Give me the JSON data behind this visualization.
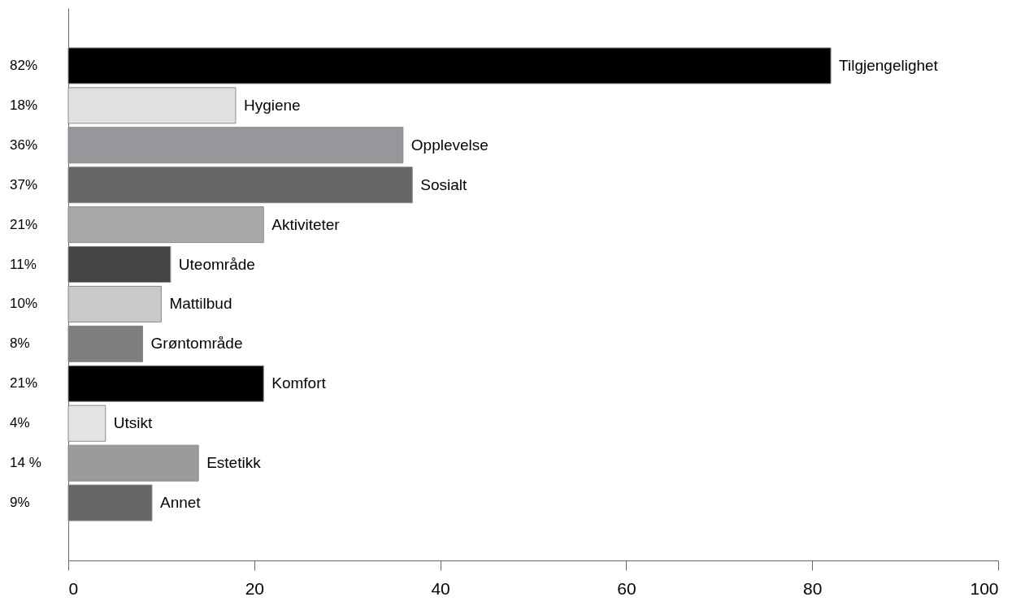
{
  "chart_data": {
    "type": "bar",
    "orientation": "horizontal",
    "categories": [
      "Tilgjengelighet",
      "Hygiene",
      "Opplevelse",
      "Sosialt",
      "Aktiviteter",
      "Uteområde",
      "Mattilbud",
      "Grøntområde",
      "Komfort",
      "Utsikt",
      "Estetikk",
      "Annet"
    ],
    "values": [
      82,
      18,
      36,
      37,
      21,
      11,
      10,
      8,
      21,
      4,
      14,
      9
    ],
    "value_labels": [
      "82%",
      "18%",
      "36%",
      "37%",
      "21%",
      "11%",
      "10%",
      "8%",
      "21%",
      "4%",
      "14 %",
      "9%"
    ],
    "colors": [
      "#000000",
      "#e0e1e3",
      "#96979a",
      "#666769",
      "#a8a9ab",
      "#444446",
      "#c8c9cb",
      "#7d7e80",
      "#000000",
      "#e3e4e6",
      "#9a9b9d",
      "#666768"
    ],
    "xlim": [
      0,
      100
    ],
    "xticks": [
      0,
      20,
      40,
      60,
      80,
      100
    ]
  }
}
